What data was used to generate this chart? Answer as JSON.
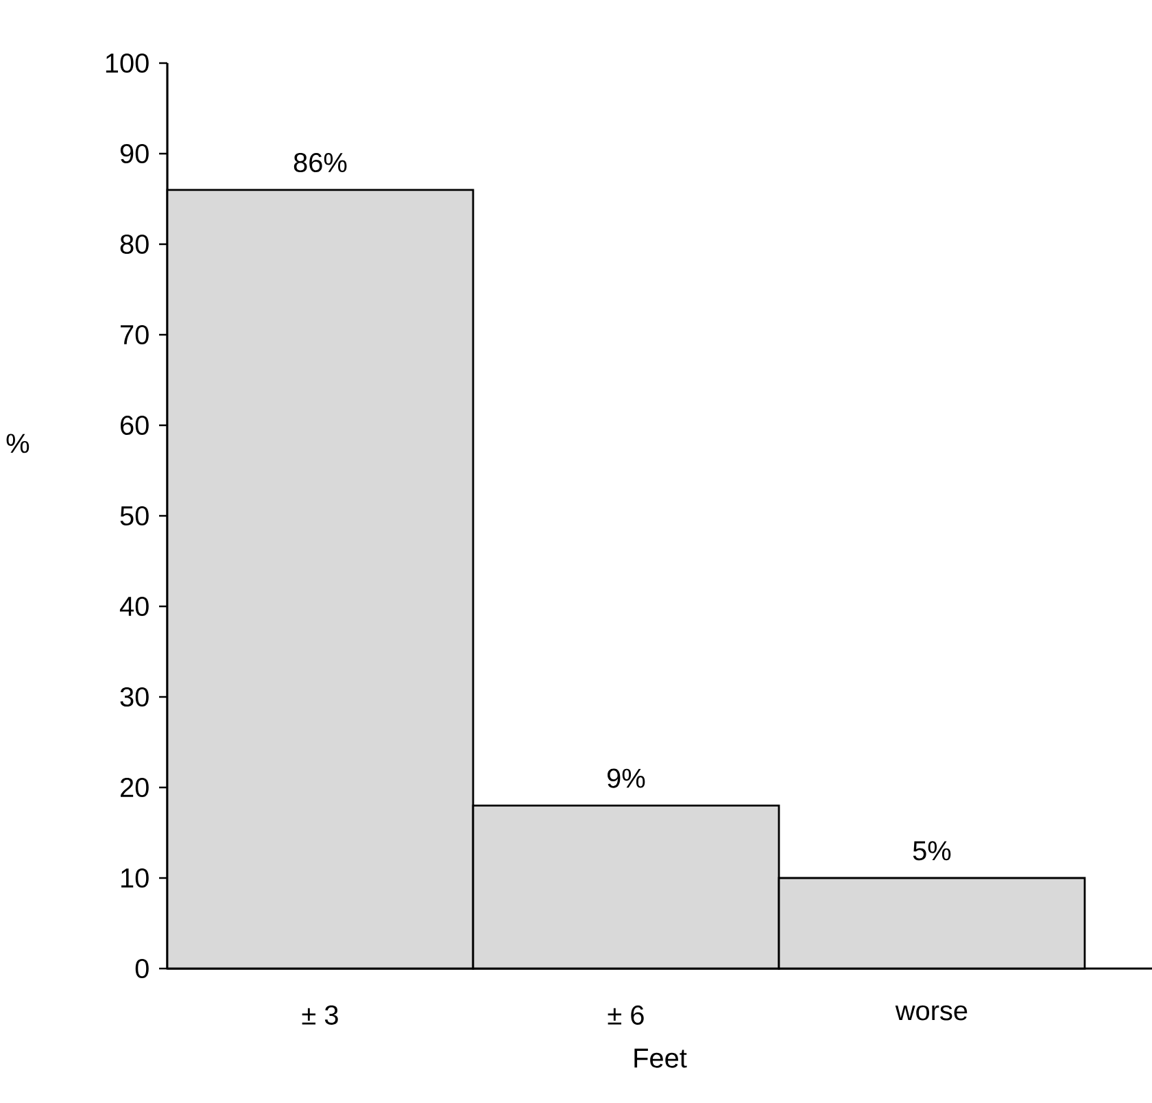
{
  "chart_data": {
    "type": "bar",
    "xlabel": "Feet",
    "ylabel": "%",
    "categories": [
      "± 3",
      "± 6",
      "worse"
    ],
    "values": [
      86,
      18,
      10
    ],
    "annotations": [
      {
        "text": "86%",
        "x": "± 3",
        "y": 86
      },
      {
        "text": "9%",
        "x": "± 6",
        "y": 18
      },
      {
        "text": "5%",
        "x": "worse",
        "y": 10
      }
    ],
    "color": "#d9d9d9",
    "ylim": [
      0,
      100
    ],
    "yticks": [
      0,
      10,
      20,
      30,
      40,
      50,
      60,
      70,
      80,
      90,
      100
    ],
    "grid": false
  }
}
